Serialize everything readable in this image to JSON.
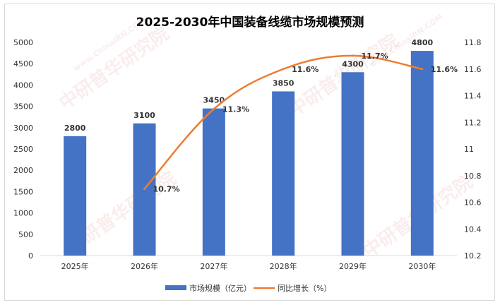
{
  "chart_data": {
    "type": "bar+line",
    "title": "2025-2030年中国装备线缆市场规模预测",
    "categories": [
      "2025年",
      "2026年",
      "2027年",
      "2028年",
      "2029年",
      "2030年"
    ],
    "series": [
      {
        "name": "市场规模（亿元）",
        "type": "bar",
        "axis": "left",
        "color": "#4472c4",
        "values": [
          2800,
          3100,
          3450,
          3850,
          4300,
          4800
        ],
        "labels": [
          "2800",
          "3100",
          "3450",
          "3850",
          "4300",
          "4800"
        ]
      },
      {
        "name": "同比增长（%）",
        "type": "line",
        "axis": "right",
        "color": "#ed7d31",
        "values": [
          null,
          10.7,
          11.3,
          11.6,
          11.7,
          11.6
        ],
        "labels": [
          "",
          "10.7%",
          "11.3%",
          "11.6%",
          "11.7%",
          "11.6%"
        ]
      }
    ],
    "y_left": {
      "min": 0,
      "max": 5000,
      "step": 500,
      "ticks": [
        "0",
        "500",
        "1000",
        "1500",
        "2000",
        "2500",
        "3000",
        "3500",
        "4000",
        "4500",
        "5000"
      ]
    },
    "y_right": {
      "min": 10.2,
      "max": 11.8,
      "step": 0.2,
      "ticks": [
        "10.2",
        "10.4",
        "10.6",
        "10.8",
        "11",
        "11.2",
        "11.4",
        "11.6",
        "11.8"
      ]
    },
    "grid": false,
    "legend_position": "bottom"
  },
  "watermark": {
    "text": "中研普华研究院",
    "url": "www.ChinaIRN.COM",
    "logo": "CIRN"
  }
}
